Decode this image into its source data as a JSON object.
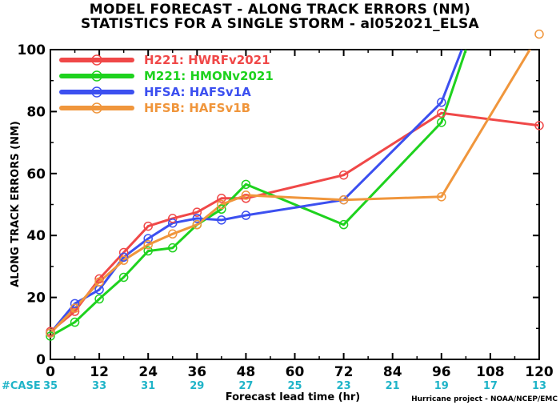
{
  "header": {
    "title_line1": "MODEL FORECAST - ALONG TRACK ERRORS (NM)",
    "title_line2": "STATISTICS FOR A SINGLE STORM - al052021_ELSA"
  },
  "footer": {
    "case_label": "#CASE",
    "credit": "Hurricane project - NOAA/NCEP/EMC"
  },
  "chart_data": {
    "type": "line",
    "title": "MODEL FORECAST - ALONG TRACK ERRORS (NM)",
    "subtitle": "STATISTICS FOR A SINGLE STORM - al052021_ELSA",
    "xlabel": "Forecast lead time (hr)",
    "ylabel": "ALONG TRACK ERRORS (NM)",
    "xlim": [
      0,
      120
    ],
    "ylim": [
      0,
      100
    ],
    "xticks": [
      0,
      12,
      24,
      36,
      48,
      60,
      72,
      84,
      96,
      108,
      120
    ],
    "yticks": [
      0,
      20,
      40,
      60,
      80,
      100
    ],
    "case_counts": [
      {
        "x": 0,
        "n": "35"
      },
      {
        "x": 12,
        "n": "33"
      },
      {
        "x": 24,
        "n": "31"
      },
      {
        "x": 36,
        "n": "29"
      },
      {
        "x": 48,
        "n": "27"
      },
      {
        "x": 60,
        "n": "25"
      },
      {
        "x": 72,
        "n": "23"
      },
      {
        "x": 84,
        "n": "21"
      },
      {
        "x": 96,
        "n": "19"
      },
      {
        "x": 108,
        "n": "17"
      },
      {
        "x": 120,
        "n": "13"
      }
    ],
    "legend_position": "top-left",
    "grid": false,
    "series": [
      {
        "code": "H221",
        "name": "HWRFv2021",
        "color": "#f04848",
        "points": [
          [
            0,
            9
          ],
          [
            6,
            15.5
          ],
          [
            12,
            26
          ],
          [
            18,
            34.5
          ],
          [
            24,
            43
          ],
          [
            30,
            45.5
          ],
          [
            36,
            47.5
          ],
          [
            42,
            52
          ],
          [
            48,
            52
          ],
          [
            72,
            59.5
          ],
          [
            96,
            79.5
          ],
          [
            120,
            75.5
          ]
        ]
      },
      {
        "code": "M221",
        "name": "HMONv2021",
        "color": "#1ed21e",
        "points": [
          [
            0,
            7.5
          ],
          [
            6,
            12
          ],
          [
            12,
            19.5
          ],
          [
            18,
            26.5
          ],
          [
            24,
            35
          ],
          [
            30,
            36
          ],
          [
            36,
            43.5
          ],
          [
            42,
            48.5
          ],
          [
            48,
            56.5
          ],
          [
            72,
            43.5
          ],
          [
            96,
            76.5
          ],
          [
            102,
            100
          ]
        ]
      },
      {
        "code": "HFSA",
        "name": "HAFSv1A",
        "color": "#3c50f0",
        "points": [
          [
            0,
            8.5
          ],
          [
            6,
            18
          ],
          [
            12,
            22.5
          ],
          [
            18,
            33
          ],
          [
            24,
            39
          ],
          [
            30,
            44
          ],
          [
            36,
            45.5
          ],
          [
            42,
            45
          ],
          [
            48,
            46.5
          ],
          [
            72,
            51.5
          ],
          [
            96,
            83
          ],
          [
            101,
            100
          ]
        ]
      },
      {
        "code": "HFSB",
        "name": "HAFSv1B",
        "color": "#f0963c",
        "points": [
          [
            0,
            8.5
          ],
          [
            6,
            16.5
          ],
          [
            12,
            25
          ],
          [
            18,
            32
          ],
          [
            24,
            37
          ],
          [
            30,
            40.5
          ],
          [
            36,
            43.5
          ],
          [
            42,
            50
          ],
          [
            48,
            53
          ],
          [
            72,
            51.5
          ],
          [
            96,
            52.5
          ],
          [
            120,
            105
          ]
        ]
      }
    ]
  }
}
